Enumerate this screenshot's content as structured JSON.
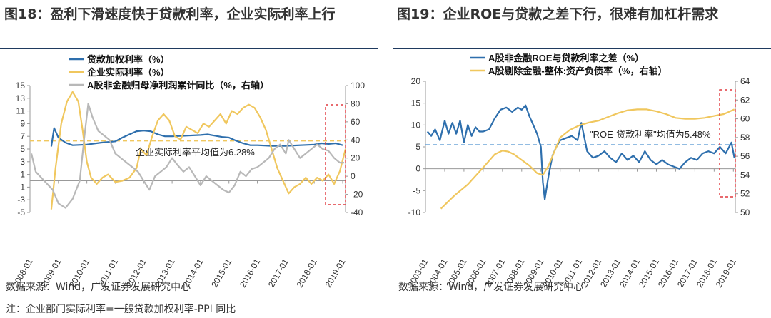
{
  "left": {
    "title_num": "图18：",
    "title_text": "盈利下滑速度快于贷款利率，企业实际利率上行",
    "source": "数据来源：Wind，广发证券发展研究中心",
    "note": "注：企业部门实际利率=一般贷款加权利率-PPI 同比"
  },
  "right": {
    "title_num": "图19：",
    "title_text": "企业ROE与贷款之差下行，很难有加杠杆需求",
    "source": "数据来源：Wind，广发证券发展研究中心"
  },
  "colors": {
    "blue": "#2e6fad",
    "yellow": "#f0c75e",
    "gray": "#b8b8b8",
    "red": "#e0393e",
    "orange_dash": "#f0c75e",
    "blue_dash": "#6ea6d8"
  },
  "chart_data": [
    {
      "type": "line",
      "title": "盈利下滑速度快于贷款利率，企业实际利率上行",
      "x_labels": [
        "2008-01",
        "2009-01",
        "2010-01",
        "2011-01",
        "2012-01",
        "2013-01",
        "2014-01",
        "2015-01",
        "2016-01",
        "2017-01",
        "2018-01",
        "2019-01"
      ],
      "x_range": [
        2008.0,
        2019.1
      ],
      "y_left": {
        "ticks": [
          "15",
          "13",
          "11",
          "9",
          "7",
          "5",
          "3",
          "1",
          "-1",
          "-3",
          "-5"
        ],
        "range": [
          -5,
          15
        ]
      },
      "y_right": {
        "ticks": [
          "100",
          "80",
          "60",
          "40",
          "20",
          "0",
          "-20",
          "-40"
        ],
        "range": [
          -40,
          100
        ]
      },
      "legend": [
        "贷款加权利率（%）",
        "企业实际利率（%）",
        "A股非金融归母净利润累计同比（%，右轴）"
      ],
      "annotation": "企业实际利率平均值为6.28%",
      "reference_line": {
        "axis": "left",
        "value": 6.28
      },
      "series": [
        {
          "name": "贷款加权利率（%）",
          "axis": "left",
          "color_key": "blue",
          "x": [
            2008.75,
            2008.85,
            2009.0,
            2009.25,
            2009.5,
            2010.0,
            2010.5,
            2011.0,
            2011.25,
            2011.5,
            2011.75,
            2012.0,
            2012.25,
            2012.5,
            2012.75,
            2013.0,
            2013.5,
            2014.0,
            2014.25,
            2014.5,
            2014.75,
            2015.0,
            2015.25,
            2015.5,
            2015.75,
            2016.0,
            2016.5,
            2017.0,
            2017.5,
            2018.0,
            2018.25,
            2018.5,
            2018.75,
            2019.0
          ],
          "y": [
            5.4,
            8.3,
            6.8,
            6.0,
            5.6,
            5.7,
            6.0,
            6.2,
            6.8,
            7.3,
            7.8,
            7.9,
            7.8,
            7.3,
            7.0,
            7.0,
            7.1,
            7.2,
            7.3,
            7.1,
            6.9,
            6.8,
            6.3,
            5.9,
            5.6,
            5.6,
            5.5,
            5.5,
            5.6,
            5.7,
            5.9,
            5.8,
            5.9,
            5.6
          ]
        },
        {
          "name": "企业实际利率（%）",
          "axis": "left",
          "color_key": "yellow",
          "x": [
            2008.75,
            2008.9,
            2009.1,
            2009.3,
            2009.5,
            2009.7,
            2009.85,
            2010.0,
            2010.15,
            2010.35,
            2010.55,
            2010.75,
            2011.0,
            2011.25,
            2011.5,
            2011.75,
            2011.9,
            2012.1,
            2012.3,
            2012.5,
            2012.7,
            2012.9,
            2013.1,
            2013.3,
            2013.5,
            2013.7,
            2013.9,
            2014.1,
            2014.3,
            2014.5,
            2014.7,
            2014.9,
            2015.1,
            2015.3,
            2015.5,
            2015.7,
            2015.9,
            2016.1,
            2016.3,
            2016.5,
            2016.7,
            2016.9,
            2017.1,
            2017.3,
            2017.5,
            2017.7,
            2017.9,
            2018.1,
            2018.3,
            2018.5,
            2018.7,
            2018.9,
            2019.1
          ],
          "y": [
            -4.5,
            2.0,
            9.0,
            12.5,
            14.0,
            12.5,
            8.0,
            3.0,
            0.5,
            -0.5,
            0.5,
            1.0,
            -0.2,
            0.0,
            0.5,
            2.0,
            5.0,
            4.0,
            7.0,
            9.5,
            10.5,
            9.5,
            7.0,
            6.5,
            8.5,
            8.0,
            7.5,
            9.0,
            8.5,
            9.5,
            10.5,
            9.0,
            11.0,
            10.5,
            11.5,
            12.0,
            11.5,
            10.0,
            8.0,
            5.0,
            2.0,
            0.0,
            -2.0,
            -1.0,
            -0.5,
            0.5,
            -0.5,
            0.5,
            0.0,
            1.0,
            -0.5,
            1.5,
            5.0
          ]
        },
        {
          "name": "A股非金融归母净利润累计同比（%，右轴）",
          "axis": "right",
          "color_key": "gray",
          "x": [
            2008.05,
            2008.2,
            2008.5,
            2008.8,
            2009.0,
            2009.25,
            2009.5,
            2009.75,
            2009.9,
            2010.05,
            2010.2,
            2010.4,
            2010.6,
            2010.8,
            2011.0,
            2011.2,
            2011.4,
            2011.6,
            2011.8,
            2012.0,
            2012.2,
            2012.4,
            2012.6,
            2012.8,
            2013.0,
            2013.2,
            2013.4,
            2013.6,
            2013.8,
            2014.0,
            2014.2,
            2014.4,
            2014.6,
            2014.8,
            2015.0,
            2015.2,
            2015.4,
            2015.6,
            2015.8,
            2016.0,
            2016.2,
            2016.4,
            2016.6,
            2016.8,
            2017.0,
            2017.1,
            2017.3,
            2017.5,
            2017.7,
            2017.9,
            2018.1,
            2018.3,
            2018.5,
            2018.7,
            2018.9,
            2019.05
          ],
          "y": [
            25,
            5,
            -5,
            -15,
            -30,
            -35,
            -25,
            -5,
            40,
            80,
            65,
            50,
            45,
            40,
            25,
            20,
            15,
            10,
            5,
            -5,
            -15,
            0,
            5,
            10,
            20,
            12,
            5,
            10,
            0,
            -10,
            0,
            -5,
            -10,
            -15,
            -18,
            -10,
            5,
            0,
            8,
            10,
            15,
            20,
            30,
            35,
            25,
            40,
            30,
            20,
            25,
            30,
            35,
            30,
            28,
            20,
            15,
            15
          ]
        }
      ]
    },
    {
      "type": "line",
      "title": "企业ROE与贷款之差下行，很难有加杠杆需求",
      "x_labels": [
        "2003-01",
        "2004-01",
        "2005-01",
        "2006-01",
        "2007-01",
        "2008-01",
        "2009-01",
        "2010-01",
        "2011-01",
        "2012-01",
        "2013-01",
        "2014-01",
        "2015-01",
        "2016-01",
        "2017-01",
        "2018-01",
        "2019-01"
      ],
      "x_range": [
        2003.0,
        2019.1
      ],
      "y_left": {
        "ticks": [
          "20",
          "15",
          "10",
          "5",
          "0",
          "-5",
          "-10"
        ],
        "range": [
          -10,
          20
        ]
      },
      "y_right": {
        "ticks": [
          "64",
          "62",
          "60",
          "58",
          "56",
          "54",
          "52",
          "50"
        ],
        "range": [
          50,
          64
        ]
      },
      "legend": [
        "A股非金融ROE与贷款利率之差（%）",
        "A股剔除金融-整体:资产负债率（%，右轴）"
      ],
      "annotation": "\"ROE-贷款利率\"均值为5.48%",
      "reference_line": {
        "axis": "left",
        "value": 5.48
      },
      "series": [
        {
          "name": "A股非金融ROE与贷款利率之差（%）",
          "axis": "left",
          "color_key": "blue",
          "x": [
            2003.1,
            2003.3,
            2003.5,
            2003.75,
            2004.0,
            2004.2,
            2004.4,
            2004.6,
            2004.8,
            2005.0,
            2005.2,
            2005.4,
            2005.6,
            2005.8,
            2006.0,
            2006.3,
            2006.6,
            2006.9,
            2007.2,
            2007.5,
            2007.8,
            2008.0,
            2008.2,
            2008.4,
            2008.6,
            2008.8,
            2009.0,
            2009.1,
            2009.2,
            2009.4,
            2009.6,
            2009.8,
            2010.0,
            2010.3,
            2010.6,
            2010.9,
            2011.1,
            2011.4,
            2011.7,
            2012.0,
            2012.3,
            2012.6,
            2012.9,
            2013.2,
            2013.5,
            2013.8,
            2014.1,
            2014.4,
            2014.7,
            2015.0,
            2015.3,
            2015.6,
            2015.9,
            2016.2,
            2016.5,
            2016.8,
            2017.1,
            2017.4,
            2017.7,
            2018.0,
            2018.3,
            2018.6,
            2018.9,
            2019.05
          ],
          "y": [
            8.5,
            7.5,
            9.0,
            6.5,
            11.0,
            8.0,
            10.5,
            8.0,
            11.0,
            6.0,
            10.0,
            7.5,
            9.5,
            8.5,
            8.5,
            9.0,
            11.5,
            13.5,
            14.0,
            13.0,
            14.0,
            13.5,
            14.5,
            12.0,
            10.0,
            8.0,
            5.0,
            -3.0,
            -7.0,
            -1.5,
            3.0,
            5.0,
            6.5,
            7.0,
            7.5,
            6.5,
            10.5,
            4.0,
            2.5,
            3.0,
            4.0,
            2.5,
            1.5,
            3.5,
            2.0,
            3.0,
            1.5,
            4.0,
            2.0,
            1.0,
            2.0,
            1.0,
            0.5,
            0.0,
            1.5,
            2.5,
            2.0,
            3.5,
            4.0,
            3.5,
            5.0,
            3.5,
            6.0,
            2.5
          ]
        },
        {
          "name": "A股剔除金融-整体:资产负债率（%，右轴）",
          "axis": "right",
          "color_key": "yellow",
          "x": [
            2003.8,
            2004.5,
            2005.2,
            2006.0,
            2006.6,
            2007.0,
            2007.3,
            2007.6,
            2008.0,
            2008.4,
            2008.8,
            2009.1,
            2009.4,
            2009.7,
            2010.0,
            2010.5,
            2011.0,
            2011.5,
            2012.0,
            2012.5,
            2013.0,
            2013.5,
            2014.0,
            2014.5,
            2015.0,
            2015.5,
            2016.0,
            2016.5,
            2017.0,
            2017.5,
            2018.0,
            2018.5,
            2019.05
          ],
          "y": [
            50.4,
            51.8,
            53.0,
            54.8,
            56.2,
            56.6,
            56.5,
            56.2,
            55.6,
            55.0,
            54.2,
            54.0,
            55.0,
            56.5,
            58.0,
            58.8,
            59.3,
            59.6,
            59.8,
            60.2,
            60.6,
            60.9,
            61.0,
            61.0,
            60.8,
            60.5,
            60.1,
            60.0,
            60.0,
            60.1,
            60.3,
            60.5,
            61.0
          ]
        }
      ]
    }
  ]
}
